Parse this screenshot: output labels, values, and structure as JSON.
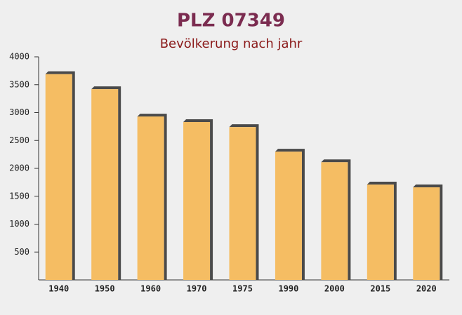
{
  "chart_data": {
    "type": "bar",
    "title": "PLZ 07349",
    "subtitle": "Bevölkerung nach jahr",
    "categories": [
      "1940",
      "1950",
      "1960",
      "1970",
      "1975",
      "1990",
      "2000",
      "2015",
      "2020"
    ],
    "values": [
      3690,
      3420,
      2930,
      2830,
      2740,
      2300,
      2110,
      1710,
      1660
    ],
    "color": "#f5bd63",
    "ylim": [
      0,
      4000
    ],
    "yticks": [
      500,
      1000,
      1500,
      2000,
      2500,
      3000,
      3500,
      4000
    ],
    "grid": false
  }
}
